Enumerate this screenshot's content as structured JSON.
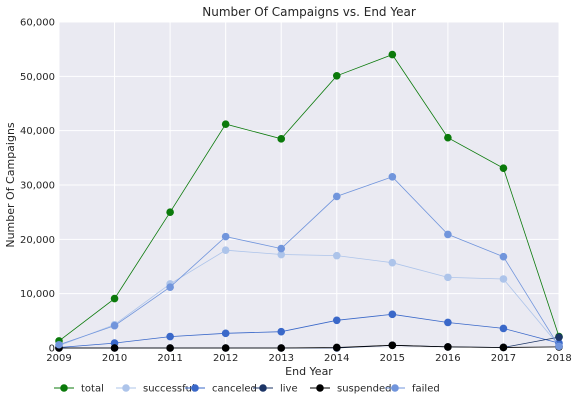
{
  "chart_data": {
    "type": "line",
    "title": "Number Of Campaigns vs. End Year",
    "xlabel": "End Year",
    "ylabel": "Number Of Campaigns",
    "x": [
      2009,
      2010,
      2011,
      2012,
      2013,
      2014,
      2015,
      2016,
      2017,
      2018
    ],
    "xlim": [
      2009,
      2018
    ],
    "ylim": [
      0,
      60000
    ],
    "x_ticks": [
      "2009",
      "2010",
      "2011",
      "2012",
      "2013",
      "2014",
      "2015",
      "2016",
      "2017",
      "2018"
    ],
    "y_ticks": [
      {
        "value": 0,
        "label": "0"
      },
      {
        "value": 10000,
        "label": "10,000"
      },
      {
        "value": 20000,
        "label": "20,000"
      },
      {
        "value": 30000,
        "label": "30,000"
      },
      {
        "value": 40000,
        "label": "40,000"
      },
      {
        "value": 50000,
        "label": "50,000"
      },
      {
        "value": 60000,
        "label": "60,000"
      }
    ],
    "grid": true,
    "legend_position": "bottom",
    "series": [
      {
        "name": "total",
        "color": "#0b7a0b",
        "values": [
          1300,
          9100,
          25000,
          41200,
          38500,
          50100,
          54000,
          38700,
          33100,
          2100
        ]
      },
      {
        "name": "successful",
        "color": "#adc4ea",
        "values": [
          400,
          4300,
          11800,
          18000,
          17200,
          17000,
          15700,
          13000,
          12700,
          400
        ]
      },
      {
        "name": "canceled",
        "color": "#3a68c9",
        "values": [
          100,
          900,
          2100,
          2700,
          3000,
          5100,
          6200,
          4700,
          3600,
          900
        ]
      },
      {
        "name": "live",
        "color": "#1c3566",
        "values": [
          0,
          0,
          0,
          0,
          0,
          0,
          500,
          200,
          100,
          2000
        ]
      },
      {
        "name": "suspended",
        "color": "#000000",
        "values": [
          0,
          0,
          0,
          0,
          0,
          100,
          500,
          200,
          100,
          200
        ]
      },
      {
        "name": "failed",
        "color": "#7195dc",
        "values": [
          600,
          4100,
          11200,
          20500,
          18300,
          27900,
          31500,
          20900,
          16800,
          300
        ]
      }
    ]
  }
}
